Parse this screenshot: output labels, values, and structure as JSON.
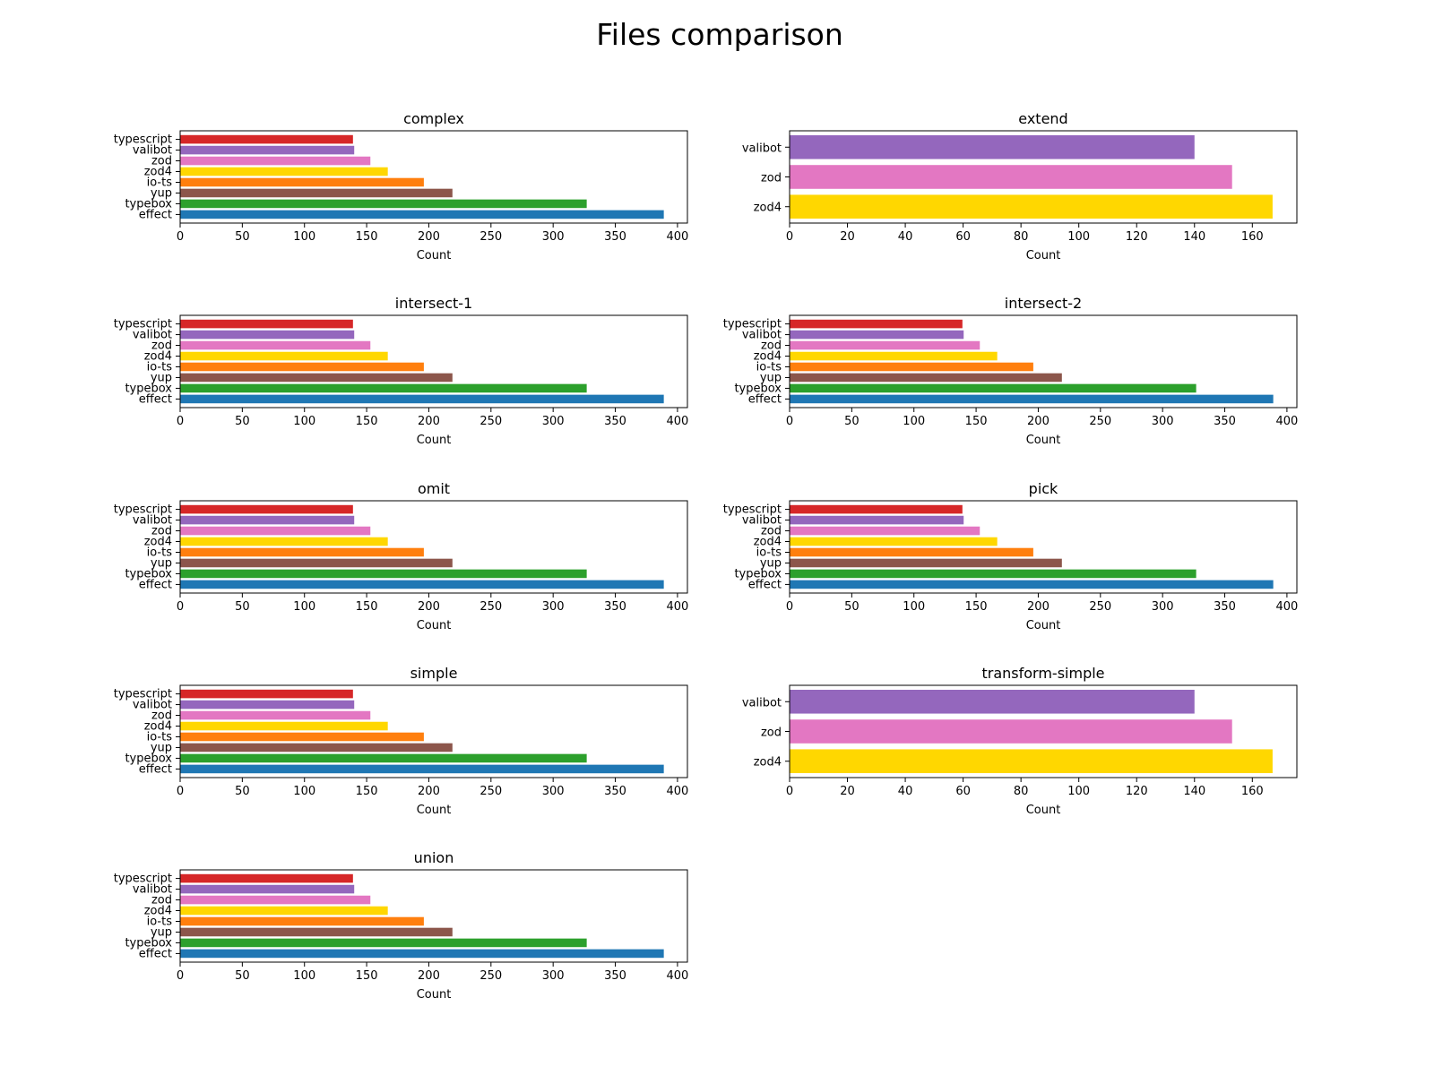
{
  "figure": {
    "title": "Files comparison"
  },
  "chart_data": [
    {
      "type": "bar",
      "orientation": "horizontal",
      "title": "complex",
      "xlabel": "Count",
      "ylabel": "",
      "categories": [
        "effect",
        "typebox",
        "yup",
        "io-ts",
        "zod4",
        "zod",
        "valibot",
        "typescript"
      ],
      "values": [
        389,
        327,
        219,
        196,
        167,
        153,
        140,
        139
      ],
      "colors": [
        "#1f77b4",
        "#2ca02c",
        "#8c564b",
        "#ff7f0e",
        "#ffd700",
        "#e377c2",
        "#9467bd",
        "#d62728"
      ],
      "xlim": [
        0,
        408
      ],
      "xticks": [
        0,
        50,
        100,
        150,
        200,
        250,
        300,
        350,
        400
      ],
      "grid": false
    },
    {
      "type": "bar",
      "orientation": "horizontal",
      "title": "extend",
      "xlabel": "Count",
      "ylabel": "",
      "categories": [
        "zod4",
        "zod",
        "valibot"
      ],
      "values": [
        167,
        153,
        140
      ],
      "colors": [
        "#ffd700",
        "#e377c2",
        "#9467bd"
      ],
      "xlim": [
        0,
        175.4
      ],
      "xticks": [
        0,
        20,
        40,
        60,
        80,
        100,
        120,
        140,
        160
      ],
      "grid": false
    },
    {
      "type": "bar",
      "orientation": "horizontal",
      "title": "intersect-1",
      "xlabel": "Count",
      "ylabel": "",
      "categories": [
        "effect",
        "typebox",
        "yup",
        "io-ts",
        "zod4",
        "zod",
        "valibot",
        "typescript"
      ],
      "values": [
        389,
        327,
        219,
        196,
        167,
        153,
        140,
        139
      ],
      "colors": [
        "#1f77b4",
        "#2ca02c",
        "#8c564b",
        "#ff7f0e",
        "#ffd700",
        "#e377c2",
        "#9467bd",
        "#d62728"
      ],
      "xlim": [
        0,
        408
      ],
      "xticks": [
        0,
        50,
        100,
        150,
        200,
        250,
        300,
        350,
        400
      ],
      "grid": false
    },
    {
      "type": "bar",
      "orientation": "horizontal",
      "title": "intersect-2",
      "xlabel": "Count",
      "ylabel": "",
      "categories": [
        "effect",
        "typebox",
        "yup",
        "io-ts",
        "zod4",
        "zod",
        "valibot",
        "typescript"
      ],
      "values": [
        389,
        327,
        219,
        196,
        167,
        153,
        140,
        139
      ],
      "colors": [
        "#1f77b4",
        "#2ca02c",
        "#8c564b",
        "#ff7f0e",
        "#ffd700",
        "#e377c2",
        "#9467bd",
        "#d62728"
      ],
      "xlim": [
        0,
        408
      ],
      "xticks": [
        0,
        50,
        100,
        150,
        200,
        250,
        300,
        350,
        400
      ],
      "grid": false
    },
    {
      "type": "bar",
      "orientation": "horizontal",
      "title": "omit",
      "xlabel": "Count",
      "ylabel": "",
      "categories": [
        "effect",
        "typebox",
        "yup",
        "io-ts",
        "zod4",
        "zod",
        "valibot",
        "typescript"
      ],
      "values": [
        389,
        327,
        219,
        196,
        167,
        153,
        140,
        139
      ],
      "colors": [
        "#1f77b4",
        "#2ca02c",
        "#8c564b",
        "#ff7f0e",
        "#ffd700",
        "#e377c2",
        "#9467bd",
        "#d62728"
      ],
      "xlim": [
        0,
        408
      ],
      "xticks": [
        0,
        50,
        100,
        150,
        200,
        250,
        300,
        350,
        400
      ],
      "grid": false
    },
    {
      "type": "bar",
      "orientation": "horizontal",
      "title": "pick",
      "xlabel": "Count",
      "ylabel": "",
      "categories": [
        "effect",
        "typebox",
        "yup",
        "io-ts",
        "zod4",
        "zod",
        "valibot",
        "typescript"
      ],
      "values": [
        389,
        327,
        219,
        196,
        167,
        153,
        140,
        139
      ],
      "colors": [
        "#1f77b4",
        "#2ca02c",
        "#8c564b",
        "#ff7f0e",
        "#ffd700",
        "#e377c2",
        "#9467bd",
        "#d62728"
      ],
      "xlim": [
        0,
        408
      ],
      "xticks": [
        0,
        50,
        100,
        150,
        200,
        250,
        300,
        350,
        400
      ],
      "grid": false
    },
    {
      "type": "bar",
      "orientation": "horizontal",
      "title": "simple",
      "xlabel": "Count",
      "ylabel": "",
      "categories": [
        "effect",
        "typebox",
        "yup",
        "io-ts",
        "zod4",
        "zod",
        "valibot",
        "typescript"
      ],
      "values": [
        389,
        327,
        219,
        196,
        167,
        153,
        140,
        139
      ],
      "colors": [
        "#1f77b4",
        "#2ca02c",
        "#8c564b",
        "#ff7f0e",
        "#ffd700",
        "#e377c2",
        "#9467bd",
        "#d62728"
      ],
      "xlim": [
        0,
        408
      ],
      "xticks": [
        0,
        50,
        100,
        150,
        200,
        250,
        300,
        350,
        400
      ],
      "grid": false
    },
    {
      "type": "bar",
      "orientation": "horizontal",
      "title": "transform-simple",
      "xlabel": "Count",
      "ylabel": "",
      "categories": [
        "zod4",
        "zod",
        "valibot"
      ],
      "values": [
        167,
        153,
        140
      ],
      "colors": [
        "#ffd700",
        "#e377c2",
        "#9467bd"
      ],
      "xlim": [
        0,
        175.4
      ],
      "xticks": [
        0,
        20,
        40,
        60,
        80,
        100,
        120,
        140,
        160
      ],
      "grid": false
    },
    {
      "type": "bar",
      "orientation": "horizontal",
      "title": "union",
      "xlabel": "Count",
      "ylabel": "",
      "categories": [
        "effect",
        "typebox",
        "yup",
        "io-ts",
        "zod4",
        "zod",
        "valibot",
        "typescript"
      ],
      "values": [
        389,
        327,
        219,
        196,
        167,
        153,
        140,
        139
      ],
      "colors": [
        "#1f77b4",
        "#2ca02c",
        "#8c564b",
        "#ff7f0e",
        "#ffd700",
        "#e377c2",
        "#9467bd",
        "#d62728"
      ],
      "xlim": [
        0,
        408
      ],
      "xticks": [
        0,
        50,
        100,
        150,
        200,
        250,
        300,
        350,
        400
      ],
      "grid": false
    }
  ]
}
